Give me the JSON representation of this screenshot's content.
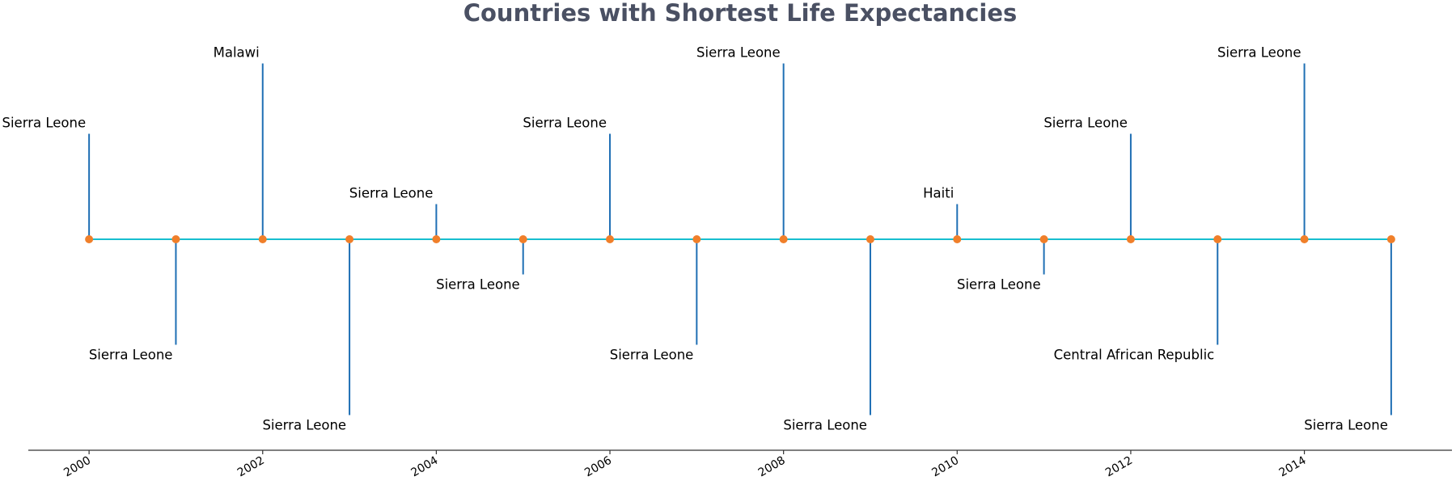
{
  "chart_data": {
    "type": "timeline",
    "title": "Countries with Shortest Life Expectancies",
    "xlabel": "",
    "ylabel": "",
    "xlim": [
      1999.3,
      2015.7
    ],
    "x_ticks": [
      2000,
      2002,
      2004,
      2006,
      2008,
      2010,
      2012,
      2014
    ],
    "x_tick_labels": [
      "2000",
      "2002",
      "2004",
      "2006",
      "2008",
      "2010",
      "2012",
      "2014"
    ],
    "grid": false,
    "legend": "none",
    "colors": {
      "title": "#4a5063",
      "baseline": "#17becf",
      "stems": "#1f6fb4",
      "markers": "#f07f2a",
      "axis": "#333333"
    },
    "events": [
      {
        "year": 2000,
        "country": "Sierra Leone",
        "level": 3
      },
      {
        "year": 2001,
        "country": "Sierra Leone",
        "level": -3
      },
      {
        "year": 2002,
        "country": "Malawi",
        "level": 5
      },
      {
        "year": 2003,
        "country": "Sierra Leone",
        "level": -5
      },
      {
        "year": 2004,
        "country": "Sierra Leone",
        "level": 1
      },
      {
        "year": 2005,
        "country": "Sierra Leone",
        "level": -1
      },
      {
        "year": 2006,
        "country": "Sierra Leone",
        "level": 3
      },
      {
        "year": 2007,
        "country": "Sierra Leone",
        "level": -3
      },
      {
        "year": 2008,
        "country": "Sierra Leone",
        "level": 5
      },
      {
        "year": 2009,
        "country": "Sierra Leone",
        "level": -5
      },
      {
        "year": 2010,
        "country": "Haiti",
        "level": 1
      },
      {
        "year": 2011,
        "country": "Sierra Leone",
        "level": -1
      },
      {
        "year": 2012,
        "country": "Sierra Leone",
        "level": 3
      },
      {
        "year": 2013,
        "country": "Central African Republic",
        "level": -3
      },
      {
        "year": 2014,
        "country": "Sierra Leone",
        "level": 5
      },
      {
        "year": 2015,
        "country": "Sierra Leone",
        "level": -5
      }
    ]
  }
}
